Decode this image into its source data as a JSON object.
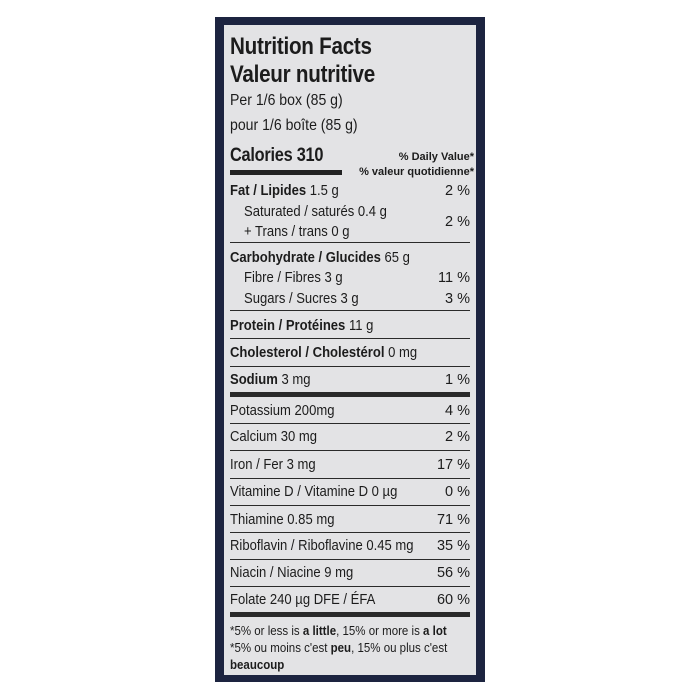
{
  "title_en": "Nutrition Facts",
  "title_fr": "Valeur nutritive",
  "serving_en": "Per 1/6 box (85 g)",
  "serving_fr": "pour 1/6 boîte (85 g)",
  "calories": "Calories 310",
  "dv_en": "% Daily Value*",
  "dv_fr": "% valeur quotidienne*",
  "rows": [
    {
      "bold": "Fat / Lipides",
      "rest": " 1.5 g",
      "pct": "2 %"
    },
    {
      "bold": "",
      "rest": "Saturated / saturés 0.4 g",
      "pct": "2 %"
    },
    {
      "bold": "",
      "rest": "+ Trans / trans 0 g",
      "pct": ""
    },
    {
      "bold": "Carbohydrate / Glucides",
      "rest": " 65 g",
      "pct": ""
    },
    {
      "bold": "",
      "rest": "Fibre / Fibres 3 g",
      "pct": "11 %"
    },
    {
      "bold": "",
      "rest": "Sugars / Sucres 3 g",
      "pct": "3 %"
    },
    {
      "bold": "Protein / Protéines",
      "rest": " 11 g",
      "pct": ""
    },
    {
      "bold": "Cholesterol / Cholestérol",
      "rest": " 0 mg",
      "pct": ""
    },
    {
      "bold": "Sodium",
      "rest": " 3 mg",
      "pct": "1 %"
    },
    {
      "bold": "",
      "rest": "Potassium 200mg",
      "pct": "4 %"
    },
    {
      "bold": "",
      "rest": "Calcium 30 mg",
      "pct": "2 %"
    },
    {
      "bold": "",
      "rest": "Iron / Fer 3 mg",
      "pct": "17 %"
    },
    {
      "bold": "",
      "rest": "Vitamine D / Vitamine D 0 µg",
      "pct": "0 %"
    },
    {
      "bold": "",
      "rest": "Thiamine 0.85 mg",
      "pct": "71 %"
    },
    {
      "bold": "",
      "rest": "Riboflavin / Riboflavine 0.45 mg",
      "pct": "35 %"
    },
    {
      "bold": "",
      "rest": "Niacin / Niacine 9 mg",
      "pct": "56 %"
    },
    {
      "bold": "",
      "rest": "Folate 240 µg DFE / ÉFA",
      "pct": "60 %"
    }
  ],
  "footnote": {
    "l1a": "*5% or less is ",
    "l1b": "a little",
    "l1c": ", 15% or more is ",
    "l1d": "a lot",
    "l2a": "*5% ou moins c'est ",
    "l2b": "peu",
    "l2c": ", 15% ou plus c'est",
    "l3": "beaucoup"
  }
}
